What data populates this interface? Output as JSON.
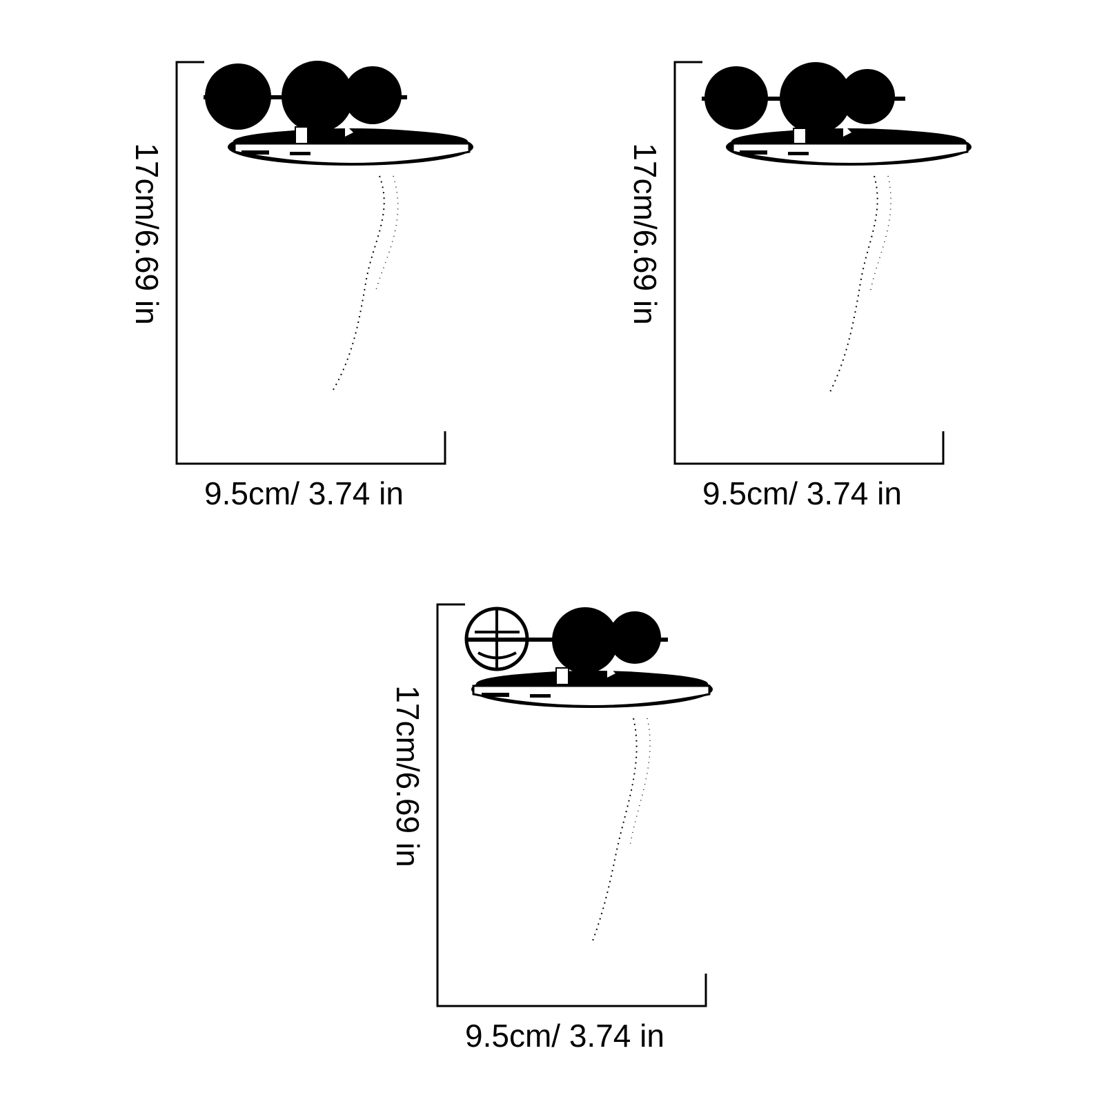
{
  "colors": {
    "ink": "#000000",
    "background": "#ffffff"
  },
  "panels": [
    {
      "height_label": "17cm/6.69 in",
      "width_label": "9.5cm/ 3.74 in"
    },
    {
      "height_label": "17cm/6.69 in",
      "width_label": "9.5cm/ 3.74 in"
    },
    {
      "height_label": "17cm/6.69 in",
      "width_label": "9.5cm/ 3.74 in"
    }
  ]
}
